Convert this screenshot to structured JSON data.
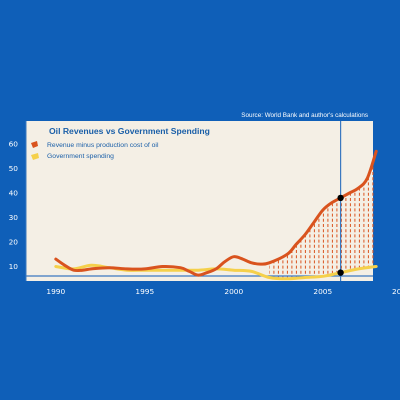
{
  "source": "Source: World Bank and author's calculations",
  "colors": {
    "background": "#0f5fb8",
    "panel": "#f4efe5",
    "revenue": "#d9531e",
    "spending": "#f5d04a",
    "gap_hatch": "#d9531e",
    "marker_line": "#3a78c0",
    "marker_dot": "#000000"
  },
  "chart_data": {
    "type": "line",
    "title": "Oil Revenues vs Government Spending",
    "xlabel": "",
    "ylabel": "",
    "xlim": [
      1989,
      2010
    ],
    "ylim": [
      0,
      60
    ],
    "x_ticks": [
      "1990",
      "1995",
      "2000",
      "2005",
      "20"
    ],
    "y_ticks": [
      "10",
      "20",
      "30",
      "40",
      "50",
      "60"
    ],
    "grid": false,
    "legend_position": "top-left",
    "shading": "dashed fill between the two series",
    "series": [
      {
        "name": "Revenue minus production cost of oil",
        "color": "#d9531e",
        "x": [
          1990,
          1990.5,
          1991,
          1991.5,
          1992,
          1993,
          1994,
          1995,
          1996,
          1997,
          1997.5,
          1998,
          1998.5,
          1999,
          1999.5,
          2000,
          2000.5,
          2001,
          2001.5,
          2002,
          2003,
          2003.5,
          2004,
          2004.5,
          2005,
          2005.5,
          2006,
          2006.5,
          2007,
          2007.5,
          2008
        ],
        "y": [
          13,
          10.5,
          8.5,
          8.5,
          9,
          9.5,
          9,
          9,
          10,
          9.5,
          8,
          6.5,
          7.5,
          9,
          12,
          14,
          13,
          11.5,
          11,
          11.5,
          15,
          19,
          23,
          28,
          33,
          36,
          38,
          40,
          42,
          46,
          57
        ]
      },
      {
        "name": "Government spending",
        "color": "#f5d04a",
        "x": [
          1990,
          1991,
          1992,
          1993,
          1994,
          1995,
          1996,
          1997,
          1998,
          1999,
          2000,
          2001,
          2002,
          2003,
          2004,
          2005,
          2006,
          2007,
          2008
        ],
        "y": [
          10,
          9,
          10.5,
          9.5,
          8.5,
          8.5,
          8.5,
          8.5,
          8.5,
          9,
          8.5,
          8,
          5.5,
          5,
          5.5,
          6,
          7.5,
          9,
          10
        ]
      }
    ],
    "marker": {
      "x": 2006,
      "points": [
        38,
        7.5
      ]
    }
  }
}
